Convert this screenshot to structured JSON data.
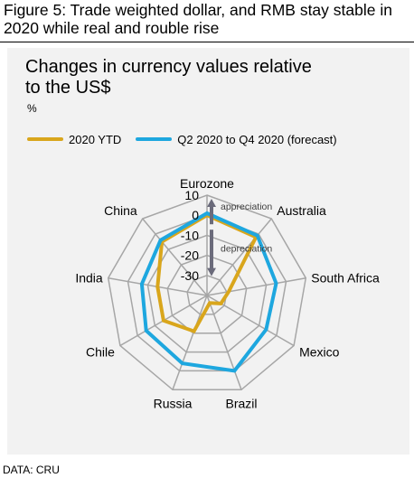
{
  "figure_title": "Figure 5: Trade weighted dollar, and RMB stay stable in 2020 while real and rouble rise",
  "source": "DATA: CRU",
  "colors": {
    "series_ytd": "#d9a61c",
    "series_forecast": "#1ea7df",
    "grid": "#a6a6a6",
    "panel": "#f2f2f2",
    "arrow": "#6b6b7b"
  },
  "chart_data": {
    "type": "radar",
    "title": "Changes in currency values  relative\nto the US$",
    "unit": "%",
    "categories": [
      "Eurozone",
      "Australia",
      "South Africa",
      "Mexico",
      "Brazil",
      "Russia",
      "Chile",
      "India",
      "China"
    ],
    "rlim": [
      -40,
      10
    ],
    "ticks": [
      10,
      0,
      -10,
      -20,
      -30
    ],
    "tick_labels": [
      "10",
      "0",
      "-10",
      "-20",
      "-30"
    ],
    "grid": true,
    "legend_position": "top",
    "series": [
      {
        "name": "2020 YTD",
        "values": [
          0,
          -2,
          -29,
          -32,
          -36,
          -21,
          -15,
          -15,
          -5
        ]
      },
      {
        "name": "Q2 2020 to Q4 2020 (forecast)",
        "values": [
          1,
          -1,
          -5,
          -6,
          0,
          -4,
          -5,
          -7,
          -4
        ]
      }
    ],
    "annotations": {
      "up": "appreciation",
      "down": "depreciation"
    }
  }
}
